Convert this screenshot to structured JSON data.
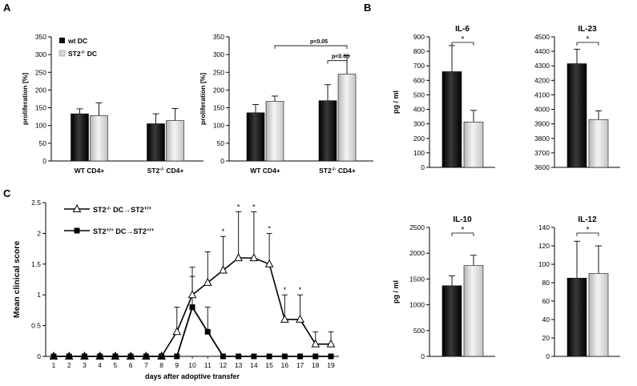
{
  "panels": {
    "A": "A",
    "B": "B",
    "C": "C"
  },
  "colors": {
    "dark": "#0a0a0a",
    "light": "#d8d8d8",
    "axis": "#000000"
  },
  "chart_data": [
    {
      "id": "a1",
      "type": "bar",
      "legend": [
        "wt DC",
        "ST2-/- DC"
      ],
      "categories": [
        "WT CD4+",
        "ST2-/- CD4+"
      ],
      "series": [
        {
          "name": "wt DC",
          "values": [
            133,
            105
          ],
          "errors": [
            14,
            28
          ]
        },
        {
          "name": "ST2-/- DC",
          "values": [
            128,
            114
          ],
          "errors": [
            36,
            34
          ]
        }
      ],
      "ylabel": "proliferation [%]",
      "ylim": [
        0,
        350
      ],
      "yticks": [
        0,
        50,
        100,
        150,
        200,
        250,
        300,
        350
      ],
      "legend_position": "top-left"
    },
    {
      "id": "a2",
      "type": "bar",
      "categories": [
        "WT CD4+",
        "ST2-/- CD4+"
      ],
      "series": [
        {
          "values": [
            136,
            170
          ],
          "errors": [
            23,
            45
          ]
        },
        {
          "values": [
            168,
            245
          ],
          "errors": [
            15,
            52
          ]
        }
      ],
      "ylabel": "proliferation  [%]",
      "ylim": [
        0,
        350
      ],
      "yticks": [
        0,
        50,
        100,
        150,
        200,
        250,
        300,
        350
      ],
      "annotations": [
        "p<0.05",
        "p<0.05"
      ]
    },
    {
      "id": "il6",
      "type": "bar",
      "title": "IL-6",
      "ylabel": "pg / ml",
      "values": [
        660,
        313
      ],
      "errors": [
        180,
        80
      ],
      "ylim": [
        0,
        900
      ],
      "yticks": [
        0,
        100,
        200,
        300,
        400,
        500,
        600,
        700,
        800,
        900
      ],
      "annotation": "*"
    },
    {
      "id": "il23",
      "type": "bar",
      "title": "IL-23",
      "values": [
        4315,
        3930
      ],
      "errors": [
        100,
        60
      ],
      "ylim": [
        3600,
        4500
      ],
      "yticks": [
        3600,
        3700,
        3800,
        3900,
        4000,
        4100,
        4200,
        4300,
        4400,
        4500
      ],
      "annotation": "*"
    },
    {
      "id": "il10",
      "type": "bar",
      "title": "IL-10",
      "ylabel": "pg / ml",
      "values": [
        1370,
        1760
      ],
      "errors": [
        190,
        200
      ],
      "ylim": [
        0,
        2500
      ],
      "yticks": [
        0,
        500,
        1000,
        1500,
        2000,
        2500
      ],
      "annotation": "*"
    },
    {
      "id": "il12",
      "type": "bar",
      "title": "IL-12",
      "values": [
        85,
        90
      ],
      "errors": [
        40,
        30
      ],
      "ylim": [
        0,
        140
      ],
      "yticks": [
        0,
        20,
        40,
        60,
        80,
        100,
        120,
        140
      ],
      "annotation": "*"
    },
    {
      "id": "c",
      "type": "line",
      "x": [
        1,
        2,
        3,
        4,
        5,
        6,
        7,
        8,
        9,
        10,
        11,
        12,
        13,
        14,
        15,
        16,
        17,
        18,
        19
      ],
      "series": [
        {
          "name": "ST2-/- DC→ST2+/+",
          "marker": "open-triangle",
          "y": [
            0,
            0,
            0,
            0,
            0,
            0,
            0,
            0,
            0.4,
            1.0,
            1.2,
            1.4,
            1.6,
            1.6,
            1.5,
            0.6,
            0.6,
            0.2,
            0.2
          ],
          "errors": [
            0,
            0,
            0,
            0,
            0,
            0,
            0,
            0,
            0.4,
            0.45,
            0.5,
            0.55,
            0.75,
            0.75,
            0.5,
            0.4,
            0.4,
            0.2,
            0.2
          ]
        },
        {
          "name": "ST2+/+ DC→ST2+/+",
          "marker": "filled-square",
          "y": [
            0,
            0,
            0,
            0,
            0,
            0,
            0,
            0,
            0,
            0.8,
            0.4,
            0,
            0,
            0,
            0,
            0,
            0,
            0,
            0
          ],
          "errors": [
            0,
            0,
            0,
            0,
            0,
            0,
            0,
            0,
            0,
            0.5,
            0.4,
            0,
            0,
            0,
            0,
            0,
            0,
            0,
            0
          ]
        }
      ],
      "significance_days": [
        12,
        13,
        14,
        15,
        16,
        17
      ],
      "xlabel": "days after adoptive transfer",
      "ylabel": "Mean clinical score",
      "ylim": [
        0,
        2.5
      ],
      "yticks": [
        0,
        0.5,
        1,
        1.5,
        2,
        2.5
      ],
      "legend_position": "top-left"
    }
  ]
}
